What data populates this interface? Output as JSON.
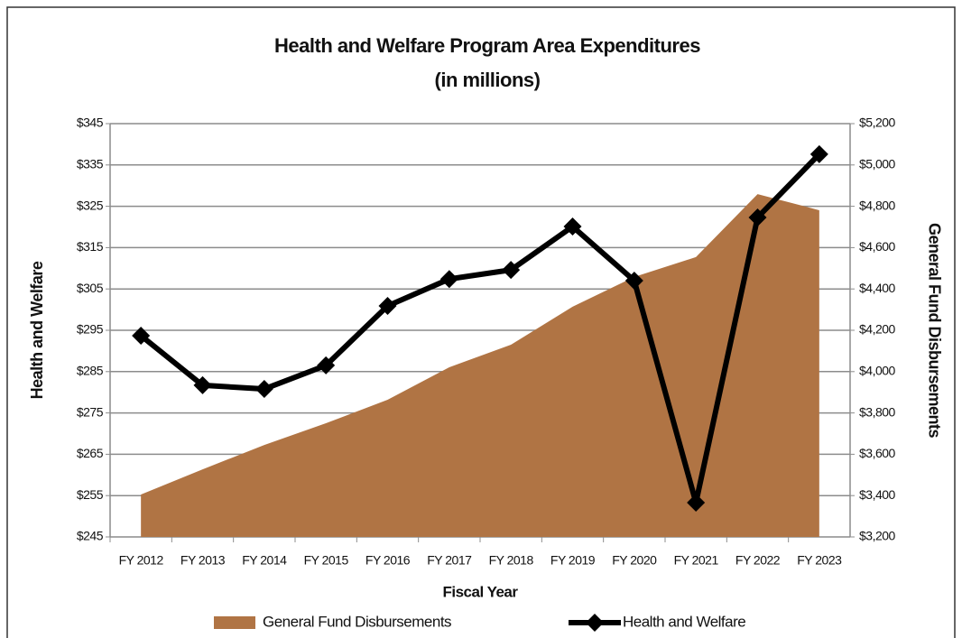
{
  "chart_data": {
    "type": "area_line",
    "title": "Health and Welfare Program Area Expenditures",
    "subtitle": "(in millions)",
    "x_label": "Fiscal Year",
    "y_label": "Health and Welfare",
    "y2_label": "General Fund Disbursements",
    "categories": [
      "FY 2012",
      "FY 2013",
      "FY 2014",
      "FY 2015",
      "FY 2016",
      "FY 2017",
      "FY 2018",
      "FY 2019",
      "FY 2020",
      "FY 2021",
      "FY 2022",
      "FY 2023"
    ],
    "series": [
      {
        "name": "General Fund Disbursements",
        "type": "area",
        "axis": "y2",
        "color": "#b07444",
        "values": [
          3405,
          3527,
          3645,
          3750,
          3864,
          4021,
          4130,
          4314,
          4458,
          4554,
          4859,
          4781
        ]
      },
      {
        "name": "Health and Welfare",
        "type": "line",
        "color": "#000000",
        "values": [
          293.7,
          281.7,
          280.8,
          286.5,
          300.9,
          307.4,
          309.6,
          320.1,
          307.0,
          253.3,
          322.3,
          337.6
        ]
      }
    ],
    "ylim": [
      245,
      345
    ],
    "yticks": [
      {
        "value": 245,
        "label": "$245"
      },
      {
        "value": 255,
        "label": "$255"
      },
      {
        "value": 265,
        "label": "$265"
      },
      {
        "value": 275,
        "label": "$275"
      },
      {
        "value": 285,
        "label": "$285"
      },
      {
        "value": 295,
        "label": "$295"
      },
      {
        "value": 305,
        "label": "$305"
      },
      {
        "value": 315,
        "label": "$315"
      },
      {
        "value": 325,
        "label": "$325"
      },
      {
        "value": 335,
        "label": "$335"
      },
      {
        "value": 345,
        "label": "$345"
      }
    ],
    "y2lim": [
      3200,
      5200
    ],
    "y2ticks": [
      {
        "value": 3200,
        "label": "$3,200"
      },
      {
        "value": 3400,
        "label": "$3,400"
      },
      {
        "value": 3600,
        "label": "$3,600"
      },
      {
        "value": 3800,
        "label": "$3,800"
      },
      {
        "value": 4000,
        "label": "$4,000"
      },
      {
        "value": 4200,
        "label": "$4,200"
      },
      {
        "value": 4400,
        "label": "$4,400"
      },
      {
        "value": 4600,
        "label": "$4,600"
      },
      {
        "value": 4800,
        "label": "$4,800"
      },
      {
        "value": 5000,
        "label": "$5,000"
      },
      {
        "value": 5200,
        "label": "$5,200"
      }
    ],
    "grid": true
  }
}
